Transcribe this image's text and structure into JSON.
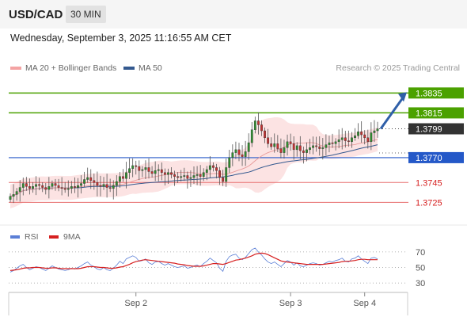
{
  "header": {
    "pair": "USD/CAD",
    "timeframe": "30 MIN"
  },
  "datetime": "Wednesday, September 3, 2025 11:16:55 AM CET",
  "legend": {
    "ma20_label": "MA 20 + Bollinger Bands",
    "ma50_label": "MA 50",
    "ma20_color": "#f4a3a3",
    "ma50_color": "#34598f"
  },
  "credit": "Research © 2025 Trading Central",
  "rsi_legend": {
    "rsi_label": "RSI",
    "ma_label": "9MA",
    "rsi_color": "#5b7fd6",
    "ma_color": "#d62020"
  },
  "chart_data": [
    {
      "type": "candlestick",
      "title": "",
      "ylim": [
        1.3703,
        1.3852
      ],
      "x_tick_labels": [
        {
          "label": "Sep 2",
          "index": 39
        },
        {
          "label": "Sep 3",
          "index": 87
        },
        {
          "label": "Sep 4",
          "index": 110
        }
      ],
      "last_price": {
        "label": "1.3799",
        "value": 1.3799,
        "color": "#333333"
      },
      "levels": [
        {
          "label": "1.3835",
          "value": 1.3835,
          "color": "#4ba100",
          "style": "target",
          "text_color": "#ffffff"
        },
        {
          "label": "1.3815",
          "value": 1.3815,
          "color": "#4ba100",
          "style": "resistance",
          "text_color": "#ffffff"
        },
        {
          "label": "1.3770",
          "value": 1.377,
          "color": "#2458c8",
          "style": "pivot",
          "text_color": "#ffffff"
        },
        {
          "label": "1.3745",
          "value": 1.3745,
          "color": "#e87070",
          "style": "support",
          "text_color": "#d62020"
        },
        {
          "label": "1.3725",
          "value": 1.3725,
          "color": "#e87070",
          "style": "support",
          "text_color": "#d62020"
        }
      ],
      "close": [
        1.3731,
        1.3733,
        1.3736,
        1.374,
        1.3744,
        1.3741,
        1.3739,
        1.3741,
        1.3743,
        1.3742,
        1.374,
        1.3738,
        1.3741,
        1.3744,
        1.3742,
        1.374,
        1.3739,
        1.3738,
        1.3739,
        1.3741,
        1.374,
        1.3742,
        1.3744,
        1.3748,
        1.375,
        1.3747,
        1.3745,
        1.3742,
        1.3741,
        1.3743,
        1.374,
        1.3739,
        1.3742,
        1.3746,
        1.3751,
        1.3749,
        1.3755,
        1.3759,
        1.3762,
        1.3761,
        1.3757,
        1.3758,
        1.376,
        1.3756,
        1.3754,
        1.3757,
        1.3758,
        1.3755,
        1.3753,
        1.3755,
        1.3753,
        1.3751,
        1.375,
        1.3751,
        1.3752,
        1.3749,
        1.375,
        1.3752,
        1.3753,
        1.3751,
        1.3755,
        1.3758,
        1.3762,
        1.376,
        1.3757,
        1.375,
        1.3746,
        1.376,
        1.377,
        1.3775,
        1.3778,
        1.3773,
        1.3771,
        1.3776,
        1.3785,
        1.3798,
        1.3807,
        1.3803,
        1.3797,
        1.379,
        1.3784,
        1.3781,
        1.3784,
        1.3779,
        1.3775,
        1.378,
        1.3786,
        1.3784,
        1.3778,
        1.3782,
        1.3777,
        1.3775,
        1.3778,
        1.378,
        1.3782,
        1.3781,
        1.3779,
        1.378,
        1.3783,
        1.3785,
        1.3784,
        1.3786,
        1.3788,
        1.379,
        1.3787,
        1.3786,
        1.379,
        1.3792,
        1.3796,
        1.3793,
        1.379,
        1.3786,
        1.3795,
        1.3797,
        1.3799
      ]
    },
    {
      "type": "line",
      "title": "RSI",
      "ylim": [
        25,
        75
      ],
      "y_ticks": [
        30,
        50,
        70
      ],
      "series": [
        {
          "name": "RSI",
          "color": "#5b7fd6",
          "values": [
            44,
            46,
            49,
            52,
            54,
            50,
            47,
            49,
            51,
            50,
            48,
            46,
            49,
            52,
            50,
            48,
            47,
            46,
            47,
            49,
            48,
            50,
            52,
            55,
            57,
            53,
            51,
            48,
            47,
            50,
            47,
            46,
            49,
            53,
            58,
            55,
            61,
            63,
            65,
            63,
            58,
            59,
            61,
            56,
            54,
            57,
            58,
            55,
            53,
            55,
            53,
            51,
            50,
            51,
            52,
            49,
            50,
            52,
            53,
            51,
            55,
            58,
            62,
            59,
            56,
            49,
            45,
            58,
            64,
            66,
            67,
            62,
            60,
            63,
            68,
            73,
            75,
            70,
            66,
            61,
            57,
            55,
            57,
            54,
            51,
            55,
            59,
            57,
            53,
            56,
            52,
            51,
            53,
            55,
            56,
            55,
            53,
            54,
            56,
            58,
            57,
            59,
            60,
            62,
            58,
            57,
            61,
            62,
            65,
            61,
            58,
            55,
            62,
            63,
            61
          ]
        },
        {
          "name": "9MA",
          "color": "#d62020",
          "values": [
            46,
            46.5,
            47,
            48,
            49,
            49.5,
            49.5,
            50,
            50,
            50,
            49.5,
            49,
            49,
            49.5,
            49.5,
            49,
            48.5,
            48.5,
            48.5,
            48.5,
            48.5,
            48.5,
            49,
            50,
            51,
            51,
            51,
            50.5,
            50,
            50,
            49.5,
            49,
            49,
            49.5,
            50.5,
            51,
            52.5,
            54,
            56,
            57.5,
            58.5,
            59.5,
            60,
            59.5,
            59,
            58.5,
            58,
            57.5,
            57,
            56.5,
            56,
            55.5,
            54.5,
            54,
            53.5,
            52.5,
            52,
            51.5,
            51.5,
            51.5,
            52,
            53,
            54,
            55,
            55,
            54.5,
            54,
            55,
            56.5,
            58,
            59.5,
            60,
            61,
            62,
            63.5,
            65,
            67,
            68,
            68.5,
            68,
            66.5,
            64.5,
            62.5,
            60.5,
            58.5,
            57.5,
            57,
            56.5,
            56,
            55.5,
            55,
            54.5,
            54,
            54,
            54,
            54,
            54,
            54,
            54.5,
            55,
            55.5,
            56,
            56.5,
            57.5,
            58,
            58,
            58.5,
            59,
            60,
            60.5,
            60.5,
            60,
            60,
            60,
            60
          ]
        }
      ]
    }
  ]
}
